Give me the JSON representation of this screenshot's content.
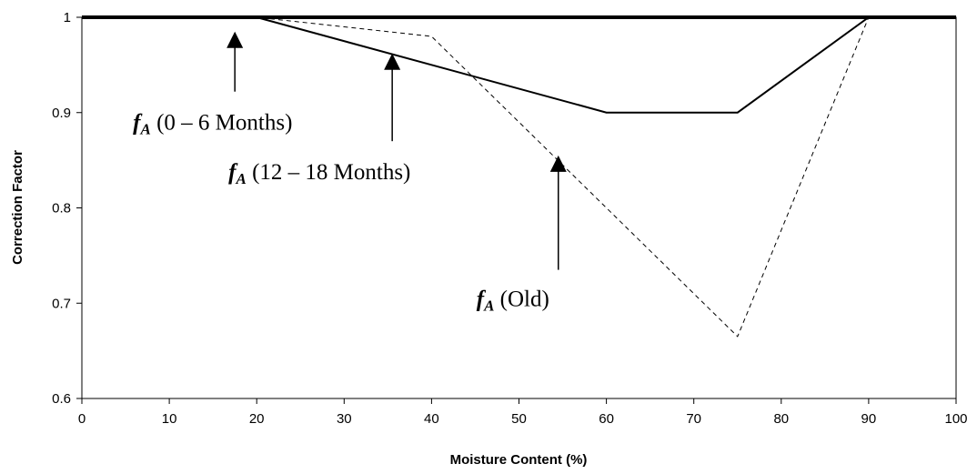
{
  "chart_data": {
    "type": "line",
    "title": "",
    "xlabel": "Moisture Content (%)",
    "ylabel": "Correction Factor",
    "xlim": [
      0,
      100
    ],
    "ylim": [
      0.6,
      1
    ],
    "x_ticks": [
      "0",
      "10",
      "20",
      "30",
      "40",
      "50",
      "60",
      "70",
      "80",
      "90",
      "100"
    ],
    "y_ticks": [
      "0.6",
      "0.7",
      "0.8",
      "0.9",
      "1"
    ],
    "grid": false,
    "legend": "none",
    "series": [
      {
        "label_symbol": "f",
        "label_subscript": "A",
        "label_rest": " (0 – 6 Months)",
        "style": "thick-solid",
        "color": "#000000",
        "points": [
          [
            0,
            1
          ],
          [
            100,
            1
          ]
        ]
      },
      {
        "label_symbol": "f",
        "label_subscript": "A",
        "label_rest": " (12 – 18 Months)",
        "style": "solid",
        "color": "#000000",
        "points": [
          [
            0,
            1
          ],
          [
            20,
            1
          ],
          [
            60,
            0.9
          ],
          [
            75,
            0.9
          ],
          [
            90,
            1
          ],
          [
            100,
            1
          ]
        ]
      },
      {
        "label_symbol": "f",
        "label_subscript": "A",
        "label_rest": " (Old)",
        "style": "dashed",
        "color": "#000000",
        "points": [
          [
            0,
            1
          ],
          [
            20,
            1
          ],
          [
            40,
            0.98
          ],
          [
            75,
            0.665
          ],
          [
            90,
            1
          ],
          [
            100,
            1
          ]
        ]
      }
    ],
    "annotations": [
      {
        "series": 0,
        "arrow_x": 17.5,
        "arrow_tip_y": 0.985,
        "arrow_tail_y": 0.922
      },
      {
        "series": 1,
        "arrow_x": 35.5,
        "arrow_tip_y": 0.962,
        "arrow_tail_y": 0.87
      },
      {
        "series": 2,
        "arrow_x": 54.5,
        "arrow_tip_y": 0.855,
        "arrow_tail_y": 0.735
      }
    ]
  }
}
